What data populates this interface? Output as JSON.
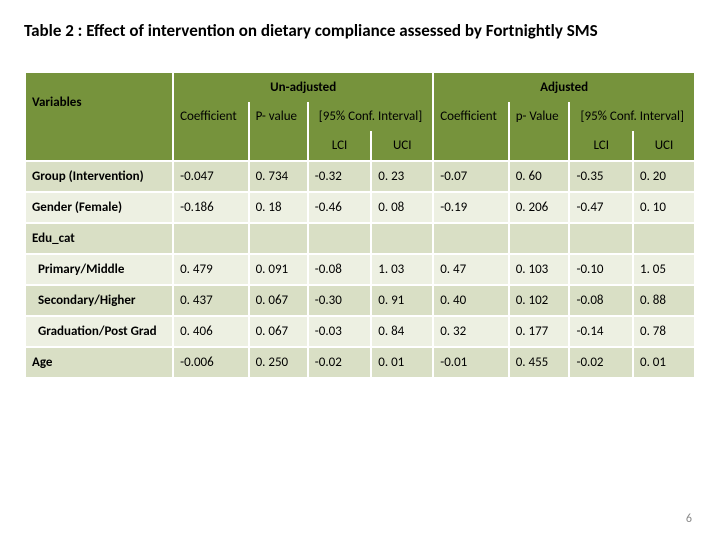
{
  "title": "Table 2 : Effect of intervention on dietary compliance assessed by Fortnightly SMS",
  "page_number": "6",
  "colors": {
    "header_bg": "#76933c",
    "row_odd_bg": "#d9dfc5",
    "row_even_bg": "#edf0e2",
    "grid": "#ffffff"
  },
  "headers": {
    "variables": "Variables",
    "unadjusted": "Un-adjusted",
    "adjusted": "Adjusted",
    "coef": "Coefficient",
    "pvalue_un": "P- value",
    "pvalue_adj": "p- Value",
    "ci": "[95% Conf. Interval]",
    "lci": "LCI",
    "uci": "UCI"
  },
  "rows": [
    {
      "label": "Group (Intervention)",
      "indent": false,
      "u_coef": "-0.047",
      "u_p": "0. 734",
      "u_lci": "-0.32",
      "u_uci": "0. 23",
      "a_coef": "-0.07",
      "a_p": "0. 60",
      "a_lci": "-0.35",
      "a_uci": "0. 20"
    },
    {
      "label": "Gender (Female)",
      "indent": false,
      "u_coef": "-0.186",
      "u_p": "0. 18",
      "u_lci": "-0.46",
      "u_uci": "0. 08",
      "a_coef": "-0.19",
      "a_p": "0. 206",
      "a_lci": "-0.47",
      "a_uci": "0. 10"
    },
    {
      "label": "Edu_cat",
      "indent": false,
      "u_coef": "",
      "u_p": "",
      "u_lci": "",
      "u_uci": "",
      "a_coef": "",
      "a_p": "",
      "a_lci": "",
      "a_uci": ""
    },
    {
      "label": "Primary/Middle",
      "indent": true,
      "u_coef": "0. 479",
      "u_p": "0. 091",
      "u_lci": "-0.08",
      "u_uci": "1. 03",
      "a_coef": "0. 47",
      "a_p": "0. 103",
      "a_lci": "-0.10",
      "a_uci": "1. 05"
    },
    {
      "label": "Secondary/Higher",
      "indent": true,
      "u_coef": "0. 437",
      "u_p": "0. 067",
      "u_lci": "-0.30",
      "u_uci": "0. 91",
      "a_coef": "0. 40",
      "a_p": "0. 102",
      "a_lci": "-0.08",
      "a_uci": "0. 88"
    },
    {
      "label": "Graduation/Post Grad",
      "indent": true,
      "u_coef": "0. 406",
      "u_p": "0. 067",
      "u_lci": "-0.03",
      "u_uci": "0. 84",
      "a_coef": "0. 32",
      "a_p": "0. 177",
      "a_lci": "-0.14",
      "a_uci": "0. 78"
    },
    {
      "label": "Age",
      "indent": false,
      "u_coef": "-0.006",
      "u_p": "0. 250",
      "u_lci": "-0.02",
      "u_uci": "0. 01",
      "a_coef": "-0.01",
      "a_p": "0. 455",
      "a_lci": "-0.02",
      "a_uci": "0. 01"
    }
  ]
}
